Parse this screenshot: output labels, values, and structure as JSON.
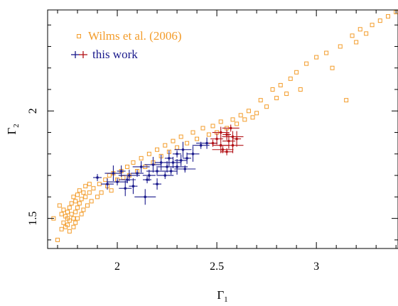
{
  "chart_data": {
    "type": "scatter",
    "title": "",
    "xlabel": "Γ",
    "xlabel_sub": "1",
    "ylabel": "Γ",
    "ylabel_sub": "2",
    "xlim": [
      1.65,
      3.41
    ],
    "ylim": [
      1.36,
      2.47
    ],
    "xticks": [
      2,
      2.5,
      3
    ],
    "xtick_labels": [
      "2",
      "2.5",
      "3"
    ],
    "yticks": [
      1.5,
      2
    ],
    "ytick_labels": [
      "1.5",
      "2"
    ],
    "grid": false,
    "legend_position": "top-left",
    "colors": {
      "wilms": "#f39c2a",
      "blue": "#1a1a8c",
      "red": "#b31217",
      "axis": "#000000"
    },
    "series": [
      {
        "name": "Wilms et al. (2006)",
        "marker": "open-square",
        "color": "#f39c2a",
        "x": [
          1.68,
          1.7,
          1.71,
          1.72,
          1.72,
          1.73,
          1.73,
          1.74,
          1.74,
          1.75,
          1.75,
          1.75,
          1.76,
          1.76,
          1.76,
          1.77,
          1.77,
          1.78,
          1.78,
          1.78,
          1.79,
          1.79,
          1.79,
          1.8,
          1.8,
          1.8,
          1.81,
          1.81,
          1.82,
          1.82,
          1.83,
          1.83,
          1.84,
          1.84,
          1.85,
          1.86,
          1.86,
          1.87,
          1.88,
          1.9,
          1.91,
          1.92,
          1.94,
          1.95,
          1.96,
          1.97,
          1.98,
          2.0,
          2.02,
          2.03,
          2.05,
          2.06,
          2.08,
          2.1,
          2.12,
          2.14,
          2.16,
          2.18,
          2.2,
          2.22,
          2.24,
          2.26,
          2.28,
          2.3,
          2.32,
          2.35,
          2.38,
          2.4,
          2.43,
          2.46,
          2.48,
          2.5,
          2.52,
          2.55,
          2.58,
          2.6,
          2.62,
          2.64,
          2.66,
          2.68,
          2.7,
          2.72,
          2.75,
          2.78,
          2.8,
          2.82,
          2.85,
          2.87,
          2.9,
          2.92,
          2.95,
          3.0,
          3.05,
          3.08,
          3.12,
          3.15,
          3.18,
          3.2,
          3.22,
          3.25,
          3.28,
          3.32,
          3.36,
          3.4
        ],
        "y": [
          1.5,
          1.4,
          1.56,
          1.45,
          1.52,
          1.48,
          1.54,
          1.51,
          1.46,
          1.53,
          1.47,
          1.5,
          1.55,
          1.49,
          1.44,
          1.52,
          1.57,
          1.5,
          1.6,
          1.46,
          1.53,
          1.58,
          1.48,
          1.55,
          1.61,
          1.5,
          1.57,
          1.63,
          1.52,
          1.59,
          1.62,
          1.54,
          1.6,
          1.65,
          1.56,
          1.62,
          1.66,
          1.58,
          1.64,
          1.6,
          1.66,
          1.62,
          1.68,
          1.65,
          1.7,
          1.63,
          1.71,
          1.68,
          1.72,
          1.69,
          1.74,
          1.7,
          1.76,
          1.72,
          1.78,
          1.74,
          1.8,
          1.76,
          1.82,
          1.79,
          1.84,
          1.81,
          1.86,
          1.83,
          1.88,
          1.85,
          1.9,
          1.87,
          1.92,
          1.89,
          1.93,
          1.9,
          1.95,
          1.92,
          1.96,
          1.94,
          1.98,
          1.96,
          2.0,
          1.97,
          1.99,
          2.05,
          2.02,
          2.1,
          2.06,
          2.12,
          2.08,
          2.15,
          2.18,
          2.1,
          2.22,
          2.25,
          2.27,
          2.2,
          2.3,
          2.05,
          2.35,
          2.32,
          2.38,
          2.36,
          2.4,
          2.42,
          2.44,
          2.46
        ]
      },
      {
        "name": "this work",
        "marker": "plus-errorbar",
        "color": "#1a1a8c",
        "x": [
          1.9,
          1.95,
          1.98,
          2.0,
          2.02,
          2.04,
          2.05,
          2.06,
          2.08,
          2.1,
          2.12,
          2.14,
          2.15,
          2.16,
          2.18,
          2.2,
          2.2,
          2.22,
          2.24,
          2.25,
          2.26,
          2.27,
          2.28,
          2.3,
          2.3,
          2.32,
          2.33,
          2.34,
          2.35,
          2.38,
          2.42,
          2.45
        ],
        "y": [
          1.69,
          1.66,
          1.71,
          1.67,
          1.72,
          1.64,
          1.68,
          1.7,
          1.65,
          1.71,
          1.74,
          1.6,
          1.68,
          1.7,
          1.75,
          1.72,
          1.66,
          1.76,
          1.7,
          1.74,
          1.78,
          1.72,
          1.76,
          1.74,
          1.8,
          1.77,
          1.82,
          1.73,
          1.78,
          1.8,
          1.84,
          1.85
        ]
      },
      {
        "name": "this work",
        "marker": "plus-errorbar",
        "color": "#b31217",
        "x": [
          2.48,
          2.5,
          2.52,
          2.53,
          2.55,
          2.56,
          2.57,
          2.58,
          2.6,
          2.55,
          2.52,
          2.58
        ],
        "y": [
          1.85,
          1.87,
          1.84,
          1.82,
          1.89,
          1.86,
          1.92,
          1.88,
          1.87,
          1.81,
          1.9,
          1.84
        ]
      }
    ]
  }
}
